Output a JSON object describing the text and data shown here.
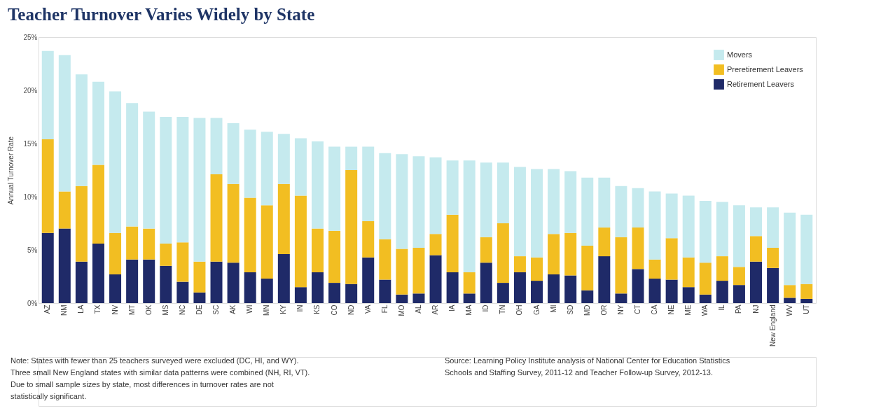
{
  "chart_data": {
    "type": "bar",
    "title": "Teacher Turnover Varies Widely by State",
    "ylabel": "Annual Turnover Rate",
    "categories": [
      "AZ",
      "NM",
      "LA",
      "TX",
      "NV",
      "MT",
      "OK",
      "MS",
      "NC",
      "DE",
      "SC",
      "AK",
      "WI",
      "MN",
      "KY",
      "IN",
      "KS",
      "CO",
      "ND",
      "VA",
      "FL",
      "MO",
      "AL",
      "AR",
      "IA",
      "MA",
      "ID",
      "TN",
      "OH",
      "GA",
      "MI",
      "SD",
      "MD",
      "OR",
      "NY",
      "CT",
      "CA",
      "NE",
      "ME",
      "WA",
      "IL",
      "PA",
      "NJ",
      "New England",
      "WV",
      "UT"
    ],
    "stacked": true,
    "series": [
      {
        "name": "Retirement Leavers",
        "color": "#1f2a68",
        "values": [
          6.6,
          7.0,
          3.9,
          5.6,
          2.7,
          4.1,
          4.1,
          3.5,
          2.0,
          1.0,
          3.9,
          3.8,
          2.9,
          2.3,
          4.6,
          1.5,
          2.9,
          1.9,
          1.8,
          4.3,
          2.2,
          0.8,
          0.9,
          4.5,
          2.9,
          0.9,
          3.8,
          1.9,
          2.9,
          2.1,
          2.7,
          2.6,
          1.2,
          4.4,
          0.9,
          3.2,
          2.3,
          2.2,
          1.5,
          0.8,
          2.1,
          1.7,
          3.9,
          3.3,
          0.5,
          0.4
        ]
      },
      {
        "name": "Preretirement Leavers",
        "color": "#f2be22",
        "values": [
          8.8,
          3.5,
          7.1,
          7.4,
          3.9,
          3.1,
          2.9,
          2.1,
          3.7,
          2.9,
          8.2,
          7.4,
          7.0,
          6.9,
          6.6,
          8.6,
          4.1,
          4.9,
          10.7,
          3.4,
          3.8,
          4.3,
          4.3,
          2.0,
          5.4,
          2.0,
          2.4,
          5.6,
          1.5,
          2.2,
          3.8,
          4.0,
          4.2,
          2.7,
          5.3,
          3.9,
          1.8,
          3.9,
          2.8,
          3.0,
          2.3,
          1.7,
          2.4,
          1.9,
          1.2,
          1.4
        ]
      },
      {
        "name": "Movers",
        "color": "#c5eaee",
        "values": [
          8.3,
          12.8,
          10.5,
          7.8,
          13.3,
          11.6,
          11.0,
          11.9,
          11.8,
          13.5,
          5.3,
          5.7,
          6.4,
          6.9,
          4.7,
          5.4,
          8.2,
          7.9,
          2.2,
          7.0,
          8.1,
          8.9,
          8.6,
          7.2,
          5.1,
          10.5,
          7.0,
          5.7,
          8.4,
          8.3,
          6.1,
          5.8,
          6.4,
          4.7,
          4.8,
          3.7,
          6.4,
          4.2,
          5.8,
          5.8,
          5.1,
          5.8,
          2.7,
          3.8,
          6.8,
          6.5
        ]
      }
    ],
    "ylim": [
      0,
      25
    ],
    "yticks": [
      {
        "value": 0,
        "label": "0%"
      },
      {
        "value": 5,
        "label": "5%"
      },
      {
        "value": 10,
        "label": "10%"
      },
      {
        "value": 15,
        "label": "15%"
      },
      {
        "value": 20,
        "label": "20%"
      },
      {
        "value": 25,
        "label": "25%"
      }
    ],
    "grid": false,
    "legend": "top right",
    "annotations": [
      "Note: States with fewer than 25 teachers surveyed were excluded (DC, HI, and WY).\nThree small New England states with similar data patterns were combined (NH, RI, VT).\nDue to small sample sizes by state, most differences in turnover rates are not\nstatistically significant.",
      "Source: Learning Policy Institute analysis of National Center for Education Statistics\nSchools and Staffing Survey, 2011-12 and Teacher Follow-up Survey, 2012-13."
    ]
  }
}
